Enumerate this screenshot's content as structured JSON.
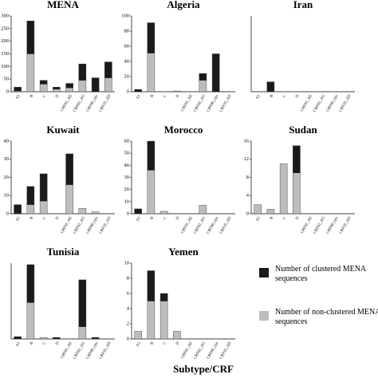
{
  "chart_data": {
    "type": "bar",
    "stacked": true,
    "categories": [
      "A1",
      "B",
      "C",
      "D",
      "CRF01_AE",
      "CRF02_AG",
      "CRF06_cpx",
      "CRF35_AD"
    ],
    "series": [
      {
        "name": "Number of clustered MENA sequences",
        "color": "#1a1a1a"
      },
      {
        "name": "Number of non-clustered MENA sequences",
        "color": "#bdbdbd"
      }
    ],
    "xlabel": "Subtype/CRF",
    "panels": [
      {
        "title": "MENA",
        "ylim": [
          0,
          300
        ],
        "yticks": [
          0,
          50,
          100,
          150,
          200,
          250,
          300
        ],
        "series": [
          {
            "values": [
              15,
              130,
              15,
              8,
              18,
              65,
              55,
              63
            ]
          },
          {
            "values": [
              3,
              150,
              30,
              10,
              15,
              45,
              0,
              55
            ]
          }
        ]
      },
      {
        "title": "Algeria",
        "ylim": [
          0,
          100
        ],
        "yticks": [
          0,
          20,
          40,
          60,
          80,
          100
        ],
        "series": [
          {
            "values": [
              3,
              40,
              0,
              0,
              0,
              9,
              50,
              0
            ]
          },
          {
            "values": [
              0,
              51,
              0,
              1,
              0,
              15,
              0,
              0
            ]
          }
        ]
      },
      {
        "title": "Iran",
        "ylim": [
          0,
          100
        ],
        "yticks": [],
        "series": [
          {
            "values": [
              0,
              13,
              0,
              0,
              0,
              0,
              0,
              0
            ]
          },
          {
            "values": [
              0,
              0,
              0,
              0,
              0,
              0,
              0,
              0
            ]
          }
        ]
      },
      {
        "title": "Kuwait",
        "ylim": [
          0,
          40
        ],
        "yticks": [
          0,
          10,
          20,
          30,
          40
        ],
        "series": [
          {
            "values": [
              5,
              10,
              15,
              0,
              17,
              0,
              0,
              0
            ]
          },
          {
            "values": [
              0,
              5,
              7,
              0,
              16,
              3,
              1,
              0
            ]
          }
        ]
      },
      {
        "title": "Morocco",
        "ylim": [
          0,
          60
        ],
        "yticks": [
          0,
          10,
          20,
          30,
          40,
          50,
          60
        ],
        "series": [
          {
            "values": [
              4,
              24,
              0,
              0,
              0,
              0,
              0,
              0
            ]
          },
          {
            "values": [
              0,
              36,
              2,
              0,
              0,
              7,
              0,
              0
            ]
          }
        ]
      },
      {
        "title": "Sudan",
        "ylim": [
          0,
          16
        ],
        "yticks": [
          0,
          4,
          8,
          12,
          16
        ],
        "series": [
          {
            "values": [
              0,
              0,
              0,
              6,
              0,
              0,
              0,
              0
            ]
          },
          {
            "values": [
              2,
              1,
              11,
              9,
              0,
              0,
              0,
              0
            ]
          }
        ]
      },
      {
        "title": "Tunisia",
        "ylim": [
          0,
          100
        ],
        "yticks": [],
        "series": [
          {
            "values": [
              3,
              50,
              0,
              2,
              0,
              62,
              2,
              0
            ]
          },
          {
            "values": [
              0,
              48,
              2,
              0,
              0,
              16,
              0,
              0
            ]
          }
        ]
      },
      {
        "title": "Yemen",
        "ylim": [
          0,
          10
        ],
        "yticks": [
          0,
          2,
          4,
          6,
          8,
          10
        ],
        "series": [
          {
            "values": [
              0,
              4,
              1,
              0,
              0,
              0,
              0,
              0
            ]
          },
          {
            "values": [
              1,
              5,
              5,
              1,
              0,
              0,
              0,
              0
            ]
          }
        ]
      }
    ]
  }
}
